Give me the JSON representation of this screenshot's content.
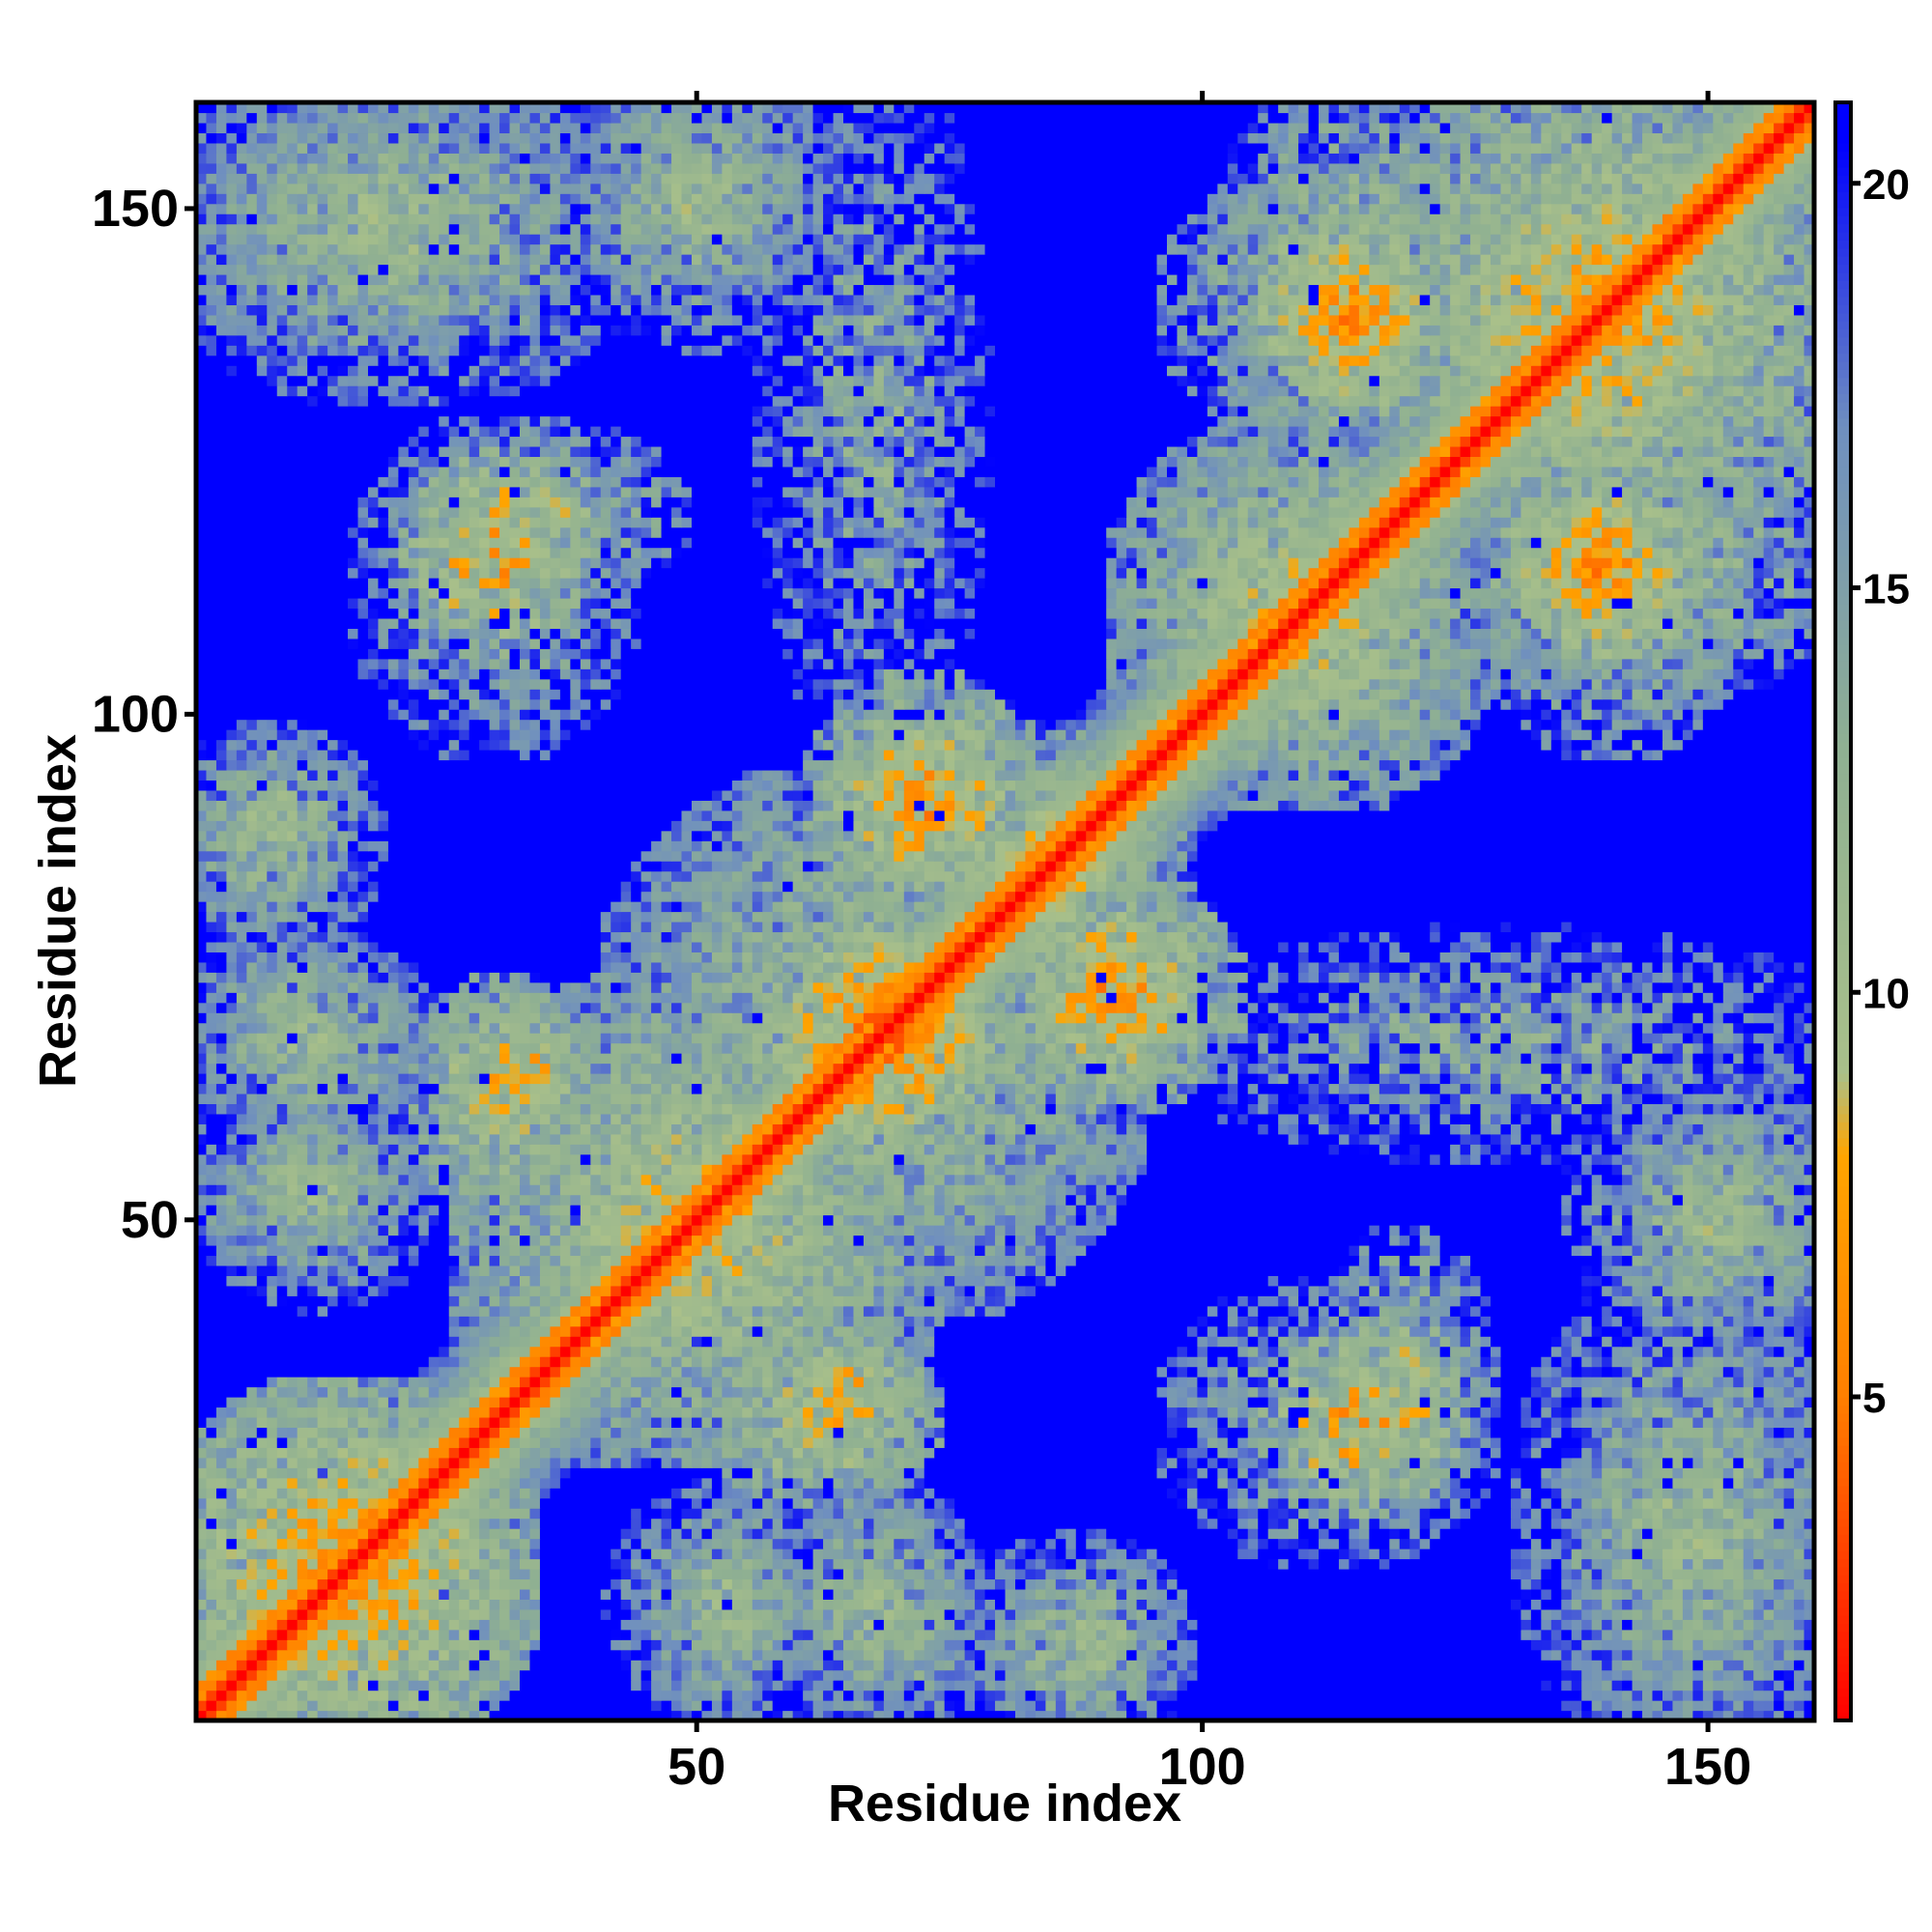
{
  "chart_data": {
    "type": "heatmap",
    "title": "",
    "xlabel": "Residue index",
    "ylabel": "Residue index",
    "x_range": [
      1,
      160
    ],
    "y_range": [
      1,
      160
    ],
    "x_ticks": [
      50,
      100,
      150
    ],
    "y_ticks": [
      50,
      100,
      150
    ],
    "colorbar": {
      "range": [
        1,
        21
      ],
      "ticks": [
        5,
        10,
        15,
        20
      ],
      "stops": [
        {
          "value": 1,
          "color": "#ff0000"
        },
        {
          "value": 5,
          "color": "#ff7f00"
        },
        {
          "value": 8,
          "color": "#ffa500"
        },
        {
          "value": 9,
          "color": "#a9c08a"
        },
        {
          "value": 13,
          "color": "#8fb092"
        },
        {
          "value": 17,
          "color": "#6f8fbf"
        },
        {
          "value": 20.5,
          "color": "#0000ff"
        }
      ]
    },
    "description": "Residue-residue distance map: cell value is the distance between residues i and j; symmetric about the diagonal; values >= 20 saturate to blue",
    "diagonal_value": 1,
    "background_value": 21,
    "contact_regions": [
      {
        "x": [
          1,
          30
        ],
        "y": [
          1,
          30
        ],
        "value": 8
      },
      {
        "x": [
          30,
          70
        ],
        "y": [
          30,
          70
        ],
        "value": 10
      },
      {
        "x": [
          45,
          90
        ],
        "y": [
          45,
          90
        ],
        "value": 11
      },
      {
        "x": [
          62,
          75
        ],
        "y": [
          62,
          75
        ],
        "value": 6
      },
      {
        "x": [
          75,
          95
        ],
        "y": [
          75,
          95
        ],
        "value": 10
      },
      {
        "x": [
          95,
          125
        ],
        "y": [
          95,
          125
        ],
        "value": 10
      },
      {
        "x": [
          120,
          160
        ],
        "y": [
          120,
          160
        ],
        "value": 9
      },
      {
        "x": [
          1,
          35
        ],
        "y": [
          140,
          160
        ],
        "value": 12
      },
      {
        "x": [
          40,
          60
        ],
        "y": [
          145,
          160
        ],
        "value": 12
      },
      {
        "x": [
          25,
          45
        ],
        "y": [
          115,
          125
        ],
        "value": 11
      },
      {
        "x": [
          1,
          15
        ],
        "y": [
          85,
          95
        ],
        "value": 12
      },
      {
        "x": [
          1,
          20
        ],
        "y": [
          62,
          75
        ],
        "value": 12
      },
      {
        "x": [
          1,
          18
        ],
        "y": [
          48,
          58
        ],
        "value": 12
      },
      {
        "x": [
          28,
          38
        ],
        "y": [
          60,
          70
        ],
        "value": 9
      },
      {
        "x": [
          55,
          70
        ],
        "y": [
          25,
          35
        ],
        "value": 9
      },
      {
        "x": [
          45,
          60
        ],
        "y": [
          5,
          20
        ],
        "value": 12
      },
      {
        "x": [
          60,
          75
        ],
        "y": [
          5,
          20
        ],
        "value": 12
      },
      {
        "x": [
          80,
          95
        ],
        "y": [
          1,
          15
        ],
        "value": 12
      },
      {
        "x": [
          100,
          125
        ],
        "y": [
          130,
          150
        ],
        "value": 11
      },
      {
        "x": [
          108,
          120
        ],
        "y": [
          135,
          145
        ],
        "value": 7
      },
      {
        "x": [
          125,
          160
        ],
        "y": [
          105,
          125
        ],
        "value": 11
      },
      {
        "x": [
          133,
          145
        ],
        "y": [
          110,
          120
        ],
        "value": 7
      },
      {
        "x": [
          100,
          125
        ],
        "y": [
          20,
          40
        ],
        "value": 12
      },
      {
        "x": [
          110,
          122
        ],
        "y": [
          25,
          35
        ],
        "value": 7
      },
      {
        "x": [
          135,
          160
        ],
        "y": [
          1,
          40
        ],
        "value": 12
      },
      {
        "x": [
          140,
          160
        ],
        "y": [
          40,
          60
        ],
        "value": 12
      },
      {
        "x": [
          100,
          160
        ],
        "y": [
          60,
          75
        ],
        "value": 13
      },
      {
        "x": [
          85,
          100
        ],
        "y": [
          65,
          80
        ],
        "value": 8
      },
      {
        "x": [
          65,
          80
        ],
        "y": [
          85,
          95
        ],
        "value": 8
      }
    ],
    "grid": false,
    "legend": "colorbar-right"
  }
}
